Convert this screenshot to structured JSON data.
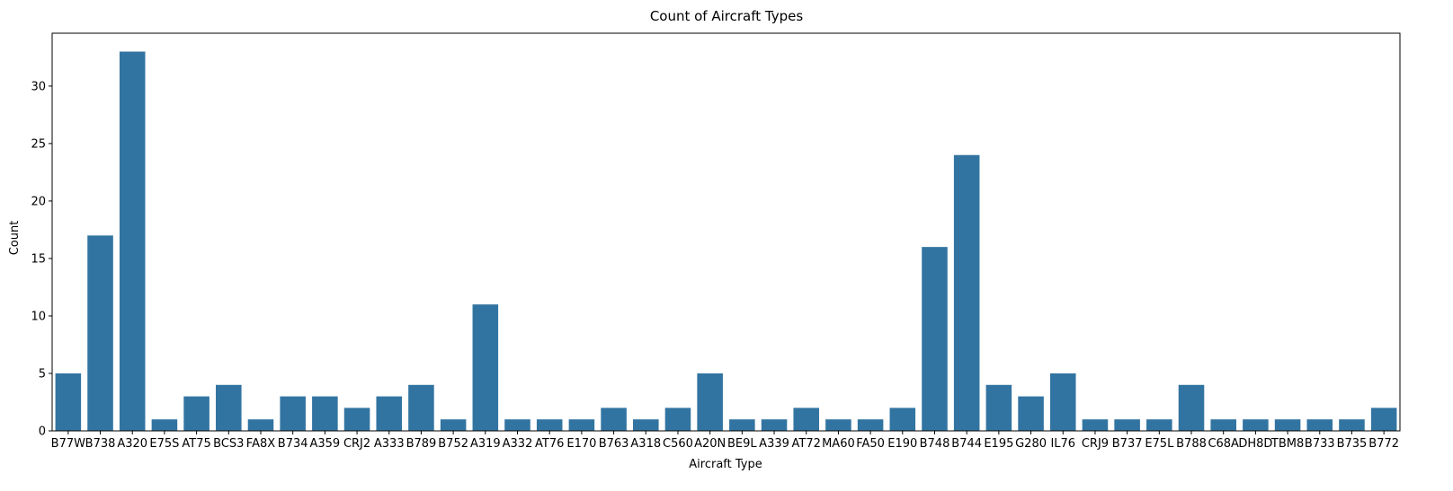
{
  "chart_data": {
    "type": "bar",
    "title": "Count of Aircraft Types",
    "xlabel": "Aircraft Type",
    "ylabel": "Count",
    "categories": [
      "B77W",
      "B738",
      "A320",
      "E75S",
      "AT75",
      "BCS3",
      "FA8X",
      "B734",
      "A359",
      "CRJ2",
      "A333",
      "B789",
      "B752",
      "A319",
      "A332",
      "AT76",
      "E170",
      "B763",
      "A318",
      "C560",
      "A20N",
      "BE9L",
      "A339",
      "AT72",
      "MA60",
      "FA50",
      "E190",
      "B748",
      "B744",
      "E195",
      "G280",
      "IL76",
      "CRJ9",
      "B737",
      "E75L",
      "B788",
      "C68A",
      "DH8D",
      "TBM8",
      "B733",
      "B735",
      "B772"
    ],
    "values": [
      5,
      17,
      33,
      1,
      3,
      4,
      1,
      3,
      3,
      2,
      3,
      4,
      1,
      11,
      1,
      1,
      1,
      2,
      1,
      2,
      5,
      1,
      1,
      2,
      1,
      1,
      2,
      16,
      24,
      4,
      3,
      5,
      1,
      1,
      1,
      4,
      1,
      1,
      1,
      1,
      1,
      2
    ],
    "ylim": [
      0,
      34.6
    ],
    "yticks": [
      0,
      5,
      10,
      15,
      20,
      25,
      30
    ],
    "grid": false,
    "colors": {
      "bar": "#3274a1",
      "axis": "#000000"
    }
  }
}
